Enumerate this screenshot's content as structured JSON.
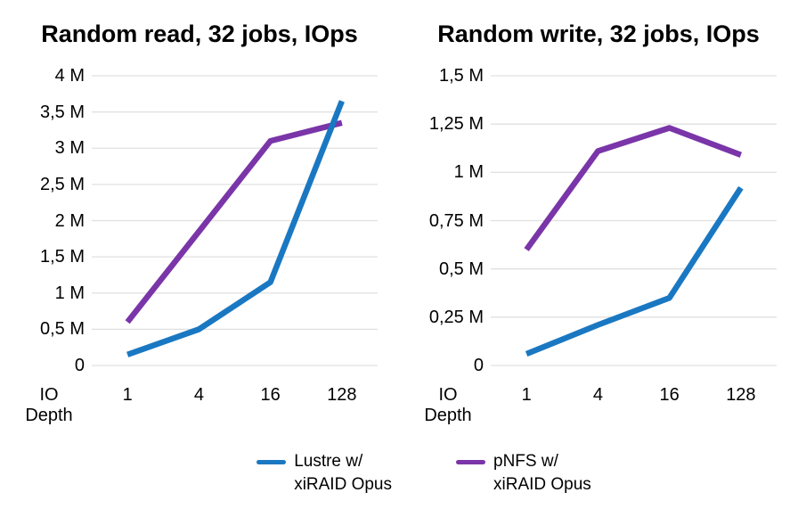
{
  "page": {
    "background": "#ffffff"
  },
  "colors": {
    "series_blue": "#1a78c2",
    "series_purple": "#7a35a8",
    "gridline": "#e0e0e0",
    "text": "#000000"
  },
  "chart_data": [
    {
      "type": "line",
      "title": "Random read, 32 jobs, IOps",
      "x_axis_label": "IO\nDepth",
      "categories": [
        "1",
        "4",
        "16",
        "128"
      ],
      "y_unit": "M IOPS",
      "ymax_millions": 4,
      "ytick_step_millions": 0.5,
      "ytick_labels": [
        "0",
        "0,5 M",
        "1 M",
        "1,5 M",
        "2 M",
        "2,5 M",
        "3 M",
        "3,5 M",
        "4 M"
      ],
      "grid": true,
      "legend_position": "bottom",
      "series": [
        {
          "name": "Lustre w/ xiRAID Opus",
          "color": "#1a78c2",
          "values_millions": [
            0.15,
            0.5,
            1.15,
            3.65
          ]
        },
        {
          "name": "pNFS w/ xiRAID Opus",
          "color": "#7a35a8",
          "values_millions": [
            0.6,
            1.85,
            3.1,
            3.35
          ]
        }
      ]
    },
    {
      "type": "line",
      "title": "Random write, 32 jobs, IOps",
      "x_axis_label": "IO\nDepth",
      "categories": [
        "1",
        "4",
        "16",
        "128"
      ],
      "y_unit": "M IOPS",
      "ymax_millions": 1.5,
      "ytick_step_millions": 0.25,
      "ytick_labels": [
        "0",
        "0,25 M",
        "0,5 M",
        "0,75 M",
        "1 M",
        "1,25 M",
        "1,5 M"
      ],
      "grid": true,
      "legend_position": "bottom",
      "series": [
        {
          "name": "Lustre w/ xiRAID Opus",
          "color": "#1a78c2",
          "values_millions": [
            0.06,
            0.21,
            0.35,
            0.92
          ]
        },
        {
          "name": "pNFS w/ xiRAID Opus",
          "color": "#7a35a8",
          "values_millions": [
            0.6,
            1.11,
            1.23,
            1.09
          ]
        }
      ]
    }
  ],
  "legend": {
    "items": [
      {
        "label": "Lustre w/\nxiRAID Opus",
        "color": "#1a78c2"
      },
      {
        "label": "pNFS w/\nxiRAID Opus",
        "color": "#7a35a8"
      }
    ]
  }
}
